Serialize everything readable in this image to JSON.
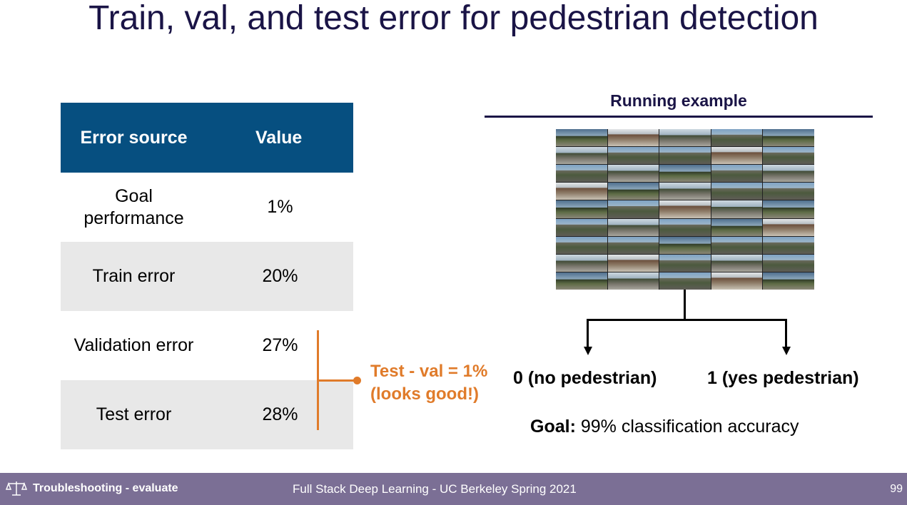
{
  "title": "Train, val, and test error for pedestrian detection",
  "table": {
    "headers": [
      "Error source",
      "Value"
    ],
    "rows": [
      {
        "source": "Goal performance",
        "value": "1%"
      },
      {
        "source": "Train error",
        "value": "20%"
      },
      {
        "source": "Validation error",
        "value": "27%"
      },
      {
        "source": "Test error",
        "value": "28%"
      }
    ]
  },
  "annotation": {
    "line1": "Test - val = 1%",
    "line2": "(looks good!)"
  },
  "running_example": {
    "title": "Running example",
    "class_0": "0 (no pedestrian)",
    "class_1": "1 (yes pedestrian)",
    "goal_label": "Goal:",
    "goal_text": " 99% classification accuracy"
  },
  "footer": {
    "section": "Troubleshooting - evaluate",
    "course": "Full Stack Deep Learning - UC Berkeley Spring 2021",
    "page_number": "99"
  },
  "colors": {
    "title": "#1a1446",
    "table_header": "#064f80",
    "accent": "#e07b2a",
    "footer_bg": "#7b6f95"
  }
}
